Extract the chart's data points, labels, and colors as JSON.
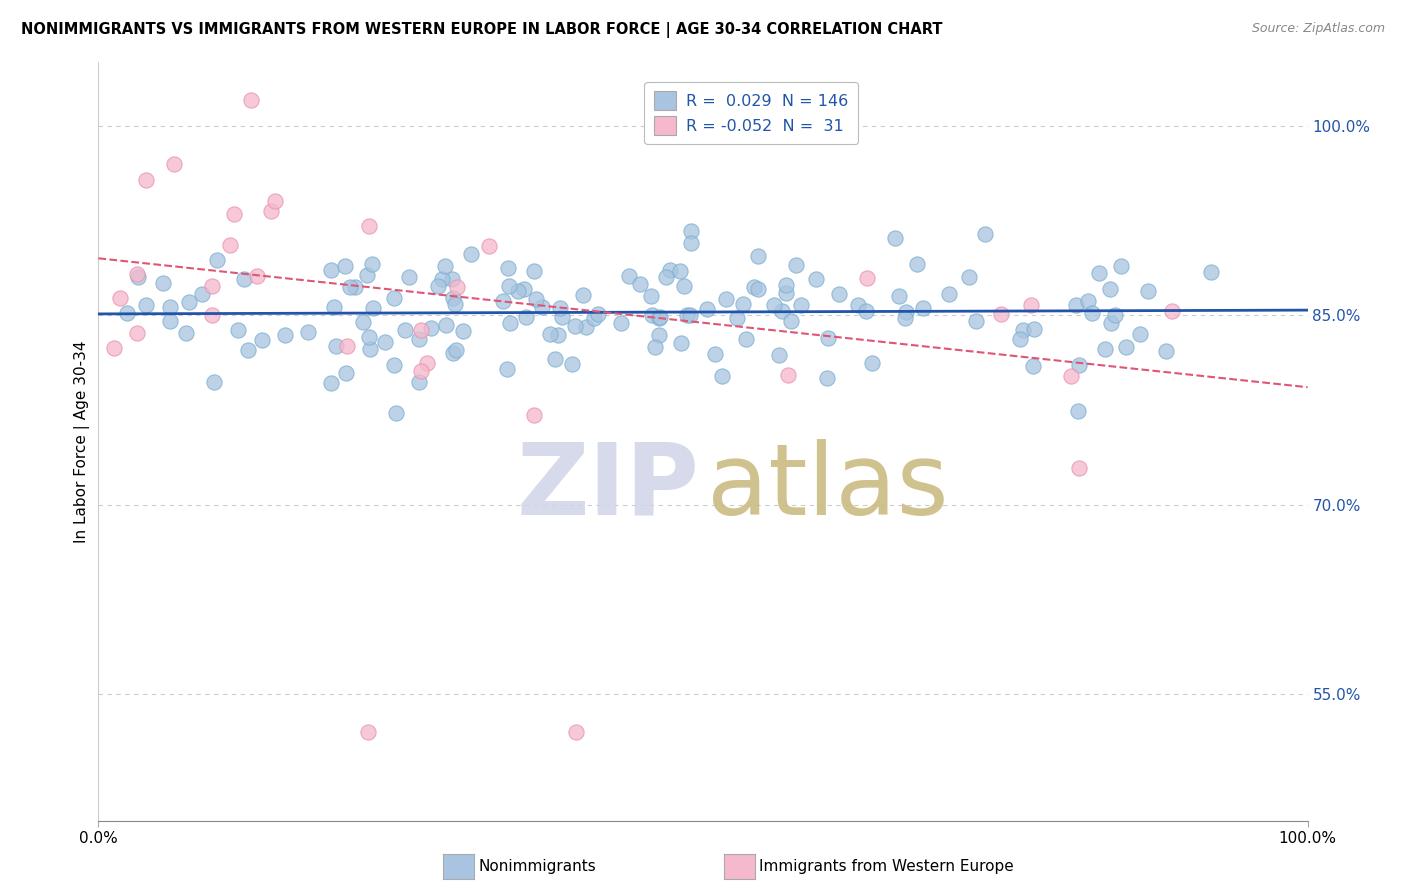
{
  "title": "NONIMMIGRANTS VS IMMIGRANTS FROM WESTERN EUROPE IN LABOR FORCE | AGE 30-34 CORRELATION CHART",
  "source": "Source: ZipAtlas.com",
  "ylabel": "In Labor Force | Age 30-34",
  "right_yticks": [
    55.0,
    70.0,
    85.0,
    100.0
  ],
  "right_ytick_labels": [
    "55.0%",
    "70.0%",
    "85.0%",
    "100.0%"
  ],
  "nonimmigrant_color": "#a8c4e0",
  "nonimmigrant_edge": "#7aaed0",
  "immigrant_color": "#f5b8cc",
  "immigrant_edge": "#e890aa",
  "trend_nonimmigrant_color": "#2255aa",
  "trend_immigrant_color": "#e05575",
  "xlim": [
    0.0,
    1.0
  ],
  "ylim": [
    0.45,
    1.05
  ],
  "trend_non_y0": 0.851,
  "trend_non_y1": 0.854,
  "trend_imm_y0": 0.895,
  "trend_imm_y1": 0.793,
  "grid_color": "#cccccc",
  "bg_color": "#ffffff",
  "legend_r_non": "0.029",
  "legend_n_non": "146",
  "legend_r_imm": "-0.052",
  "legend_n_imm": "31",
  "watermark_zip_color": "#d0d4e8",
  "watermark_atlas_color": "#c8b87a",
  "scatter_size": 120,
  "scatter_alpha": 0.75
}
